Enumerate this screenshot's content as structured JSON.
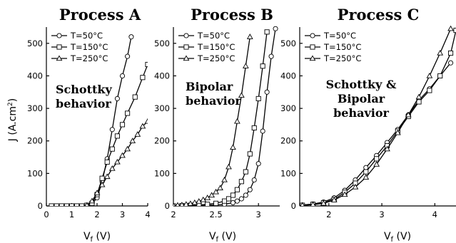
{
  "chart_data": [
    {
      "type": "line",
      "title": "Process A",
      "xlabel": "V_f (V)",
      "ylabel": "J (A.cm²)",
      "xlim": [
        0,
        4
      ],
      "ylim": [
        0,
        550
      ],
      "xticks": [
        "0",
        "1",
        "2",
        "3",
        "4"
      ],
      "yticks": [
        "0",
        "100",
        "200",
        "300",
        "400",
        "500"
      ],
      "legend_position": "top-left",
      "annotation": [
        "Schottky",
        "behavior"
      ],
      "series": [
        {
          "name": "T=50°C",
          "marker": "circle",
          "x": [
            0.2,
            0.4,
            0.6,
            0.8,
            1.0,
            1.2,
            1.4,
            1.6,
            1.8,
            2.0,
            2.2,
            2.4,
            2.6,
            2.8,
            3.0,
            3.2,
            3.35
          ],
          "y": [
            0,
            0,
            0,
            0,
            0,
            0,
            0,
            2,
            6,
            25,
            75,
            145,
            235,
            330,
            400,
            460,
            520
          ]
        },
        {
          "name": "T=150°C",
          "marker": "square",
          "x": [
            0.2,
            0.4,
            0.6,
            0.8,
            1.0,
            1.2,
            1.4,
            1.6,
            1.8,
            2.0,
            2.2,
            2.4,
            2.6,
            2.8,
            3.0,
            3.2,
            3.5,
            3.8,
            4.0
          ],
          "y": [
            0,
            0,
            0,
            0,
            0,
            0,
            0,
            2,
            8,
            35,
            85,
            135,
            175,
            215,
            250,
            285,
            335,
            395,
            435
          ]
        },
        {
          "name": "T=250°C",
          "marker": "triangle",
          "x": [
            1.6,
            1.8,
            2.0,
            2.2,
            2.4,
            2.6,
            2.8,
            3.0,
            3.2,
            3.4,
            3.6,
            3.8,
            4.0
          ],
          "y": [
            2,
            15,
            40,
            65,
            90,
            115,
            135,
            155,
            175,
            200,
            220,
            245,
            260
          ]
        }
      ]
    },
    {
      "type": "line",
      "title": "Process B",
      "xlabel": "V_f (V)",
      "xlim": [
        2,
        3.25
      ],
      "ylim": [
        0,
        550
      ],
      "xticks": [
        "2",
        "2.5",
        "3"
      ],
      "yticks": [
        "0",
        "100",
        "200",
        "300",
        "400",
        "500"
      ],
      "legend_position": "top-left",
      "annotation": [
        "Bipolar",
        "behavior"
      ],
      "series": [
        {
          "name": "T=50°C",
          "marker": "circle",
          "x": [
            2.0,
            2.1,
            2.2,
            2.3,
            2.4,
            2.5,
            2.6,
            2.7,
            2.75,
            2.8,
            2.85,
            2.9,
            2.95,
            3.0,
            3.05,
            3.1,
            3.15,
            3.2
          ],
          "y": [
            0,
            0,
            1,
            1,
            2,
            3,
            5,
            10,
            15,
            22,
            33,
            50,
            80,
            130,
            230,
            350,
            460,
            545
          ]
        },
        {
          "name": "T=150°C",
          "marker": "square",
          "x": [
            2.0,
            2.1,
            2.2,
            2.3,
            2.4,
            2.5,
            2.6,
            2.65,
            2.7,
            2.75,
            2.8,
            2.85,
            2.9,
            2.95,
            3.0,
            3.05,
            3.1
          ],
          "y": [
            0,
            1,
            2,
            3,
            5,
            8,
            15,
            22,
            33,
            50,
            75,
            105,
            160,
            240,
            330,
            430,
            535
          ]
        },
        {
          "name": "T=250°C",
          "marker": "triangle",
          "x": [
            2.0,
            2.05,
            2.1,
            2.15,
            2.2,
            2.25,
            2.3,
            2.35,
            2.4,
            2.45,
            2.5,
            2.55,
            2.6,
            2.65,
            2.7,
            2.75,
            2.8,
            2.85,
            2.9
          ],
          "y": [
            1,
            2,
            3,
            5,
            7,
            10,
            14,
            19,
            25,
            33,
            43,
            55,
            80,
            120,
            180,
            260,
            340,
            430,
            520
          ]
        }
      ]
    },
    {
      "type": "line",
      "title": "Process C",
      "xlabel": "V_f (V)",
      "xlim": [
        1.45,
        4.4
      ],
      "ylim": [
        0,
        550
      ],
      "xticks": [
        "2",
        "3",
        "4"
      ],
      "yticks": [
        "0",
        "100",
        "200",
        "300",
        "400",
        "500"
      ],
      "legend_position": "top-left",
      "annotation": [
        "Schottky &",
        "Bipolar",
        "behavior"
      ],
      "series": [
        {
          "name": "T=50°C",
          "marker": "circle",
          "x": [
            1.5,
            1.7,
            1.9,
            2.1,
            2.3,
            2.5,
            2.7,
            2.9,
            3.1,
            3.3,
            3.5,
            3.7,
            3.9,
            4.1,
            4.3
          ],
          "y": [
            3,
            6,
            12,
            25,
            48,
            80,
            118,
            155,
            195,
            235,
            280,
            325,
            360,
            400,
            440
          ]
        },
        {
          "name": "T=150°C",
          "marker": "square",
          "x": [
            1.5,
            1.7,
            1.9,
            2.1,
            2.3,
            2.5,
            2.7,
            2.9,
            3.1,
            3.3,
            3.5,
            3.7,
            3.9,
            4.1,
            4.3,
            4.4
          ],
          "y": [
            2,
            5,
            10,
            20,
            42,
            70,
            105,
            145,
            185,
            230,
            275,
            320,
            355,
            400,
            470,
            540
          ]
        },
        {
          "name": "T=250°C",
          "marker": "triangle",
          "x": [
            1.5,
            1.7,
            1.9,
            2.1,
            2.3,
            2.5,
            2.7,
            2.9,
            3.1,
            3.3,
            3.5,
            3.7,
            3.9,
            4.1,
            4.3
          ],
          "y": [
            2,
            4,
            8,
            18,
            35,
            58,
            88,
            128,
            175,
            225,
            280,
            335,
            400,
            470,
            545
          ]
        }
      ]
    }
  ]
}
